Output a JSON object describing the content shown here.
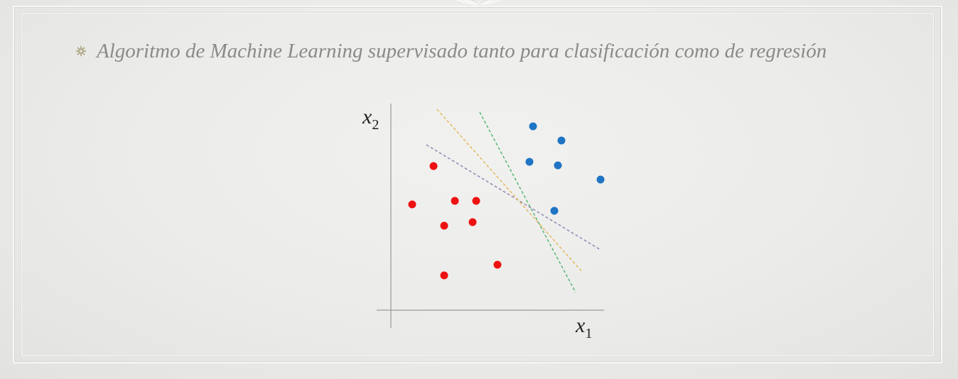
{
  "slide": {
    "bullet_text": "Algoritmo de Machine Learning supervisado tanto para clasificación como de regresión",
    "bullet_icon": "gear-bullet-icon"
  },
  "diagram": {
    "x_label": "x",
    "x_sub": "1",
    "y_label": "x",
    "y_sub": "2",
    "colors": {
      "class_red": "#ee1111",
      "class_blue": "#1f74c4",
      "line_purple": "#8e7fb0",
      "line_orange": "#e4b452",
      "line_green": "#4fb36f",
      "axis": "#999999"
    }
  }
}
